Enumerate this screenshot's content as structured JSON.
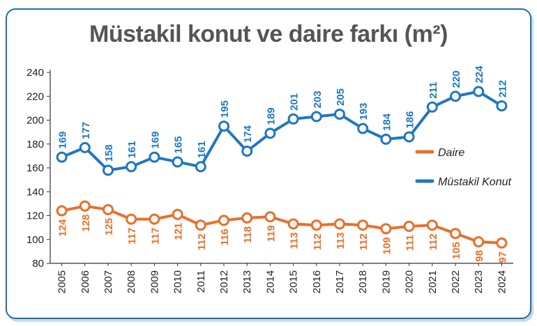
{
  "title": "Müstakil konut ve daire farkı (m²)",
  "colors": {
    "mustakil": "#1f77c4",
    "daire": "#e8702a",
    "border": "#1d6fb0"
  },
  "chart_data": {
    "type": "line",
    "title": "Müstakil konut ve daire farkı (m²)",
    "x": [
      "2005",
      "2006",
      "2007",
      "2008",
      "2009",
      "2010",
      "2011",
      "2012",
      "2013",
      "2014",
      "2015",
      "2016",
      "2017",
      "2018",
      "2019",
      "2020",
      "2021",
      "2022",
      "2023",
      "2024"
    ],
    "ylim": [
      80,
      240
    ],
    "yticks": [
      80,
      100,
      120,
      140,
      160,
      180,
      200,
      220,
      240
    ],
    "grid": false,
    "legend": "right",
    "series": [
      {
        "name": "Müstakil Konut",
        "color": "#1f77c4",
        "values": [
          169,
          177,
          158,
          161,
          169,
          165,
          161,
          195,
          174,
          189,
          201,
          203,
          205,
          193,
          184,
          186,
          211,
          220,
          224,
          212
        ]
      },
      {
        "name": "Daire",
        "color": "#e8702a",
        "values": [
          124,
          128,
          125,
          117,
          117,
          121,
          112,
          116,
          118,
          119,
          113,
          112,
          113,
          112,
          109,
          111,
          112,
          105,
          98,
          97
        ]
      }
    ]
  }
}
